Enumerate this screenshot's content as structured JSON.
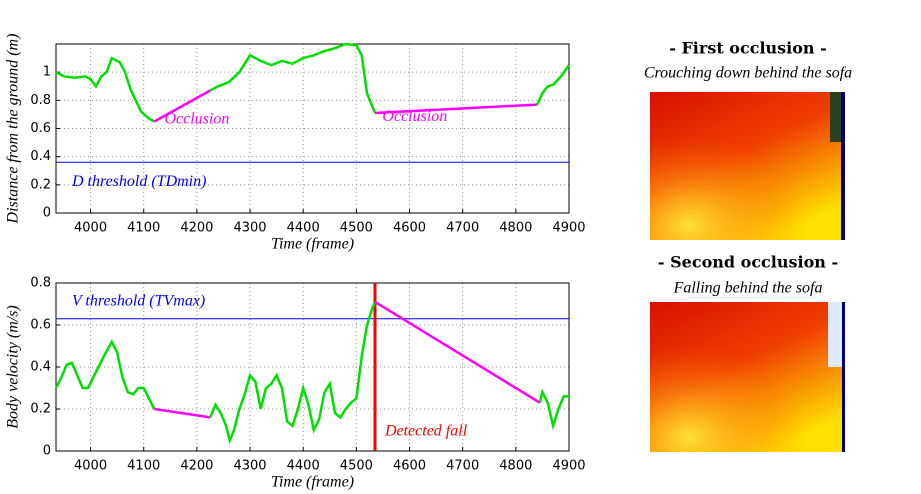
{
  "chart_data": [
    {
      "type": "line",
      "xlabel": "Time (frame)",
      "ylabel": "Distance from the ground (m)",
      "xlim": [
        3935,
        4900
      ],
      "xticks": [
        4000,
        4100,
        4200,
        4300,
        4400,
        4500,
        4600,
        4700,
        4800,
        4900
      ],
      "ylim": [
        0,
        1.2
      ],
      "yticks": [
        0,
        0.2,
        0.4,
        0.6,
        0.8,
        1
      ],
      "grid": true,
      "series": [
        {
          "color": "#00e000",
          "x": [
            3935,
            3950,
            3970,
            3990,
            4000,
            4010,
            4020,
            4030,
            4040,
            4055,
            4065,
            4075,
            4085,
            4095,
            4110,
            4120
          ],
          "values": [
            1.0,
            0.97,
            0.96,
            0.97,
            0.95,
            0.9,
            0.97,
            1.0,
            1.1,
            1.07,
            1.0,
            0.88,
            0.8,
            0.72,
            0.67,
            0.65
          ]
        },
        {
          "color": "#ff00ff",
          "x": [
            4120,
            4225
          ],
          "values": [
            0.65,
            0.87
          ]
        },
        {
          "color": "#00e000",
          "x": [
            4225,
            4240,
            4260,
            4280,
            4300,
            4320,
            4340,
            4360,
            4380,
            4400,
            4420,
            4440,
            4460,
            4480,
            4500,
            4510,
            4520,
            4535
          ],
          "values": [
            0.87,
            0.9,
            0.93,
            1.0,
            1.12,
            1.08,
            1.05,
            1.08,
            1.06,
            1.1,
            1.12,
            1.15,
            1.17,
            1.2,
            1.19,
            1.12,
            0.85,
            0.71
          ]
        },
        {
          "color": "#ff00ff",
          "x": [
            4535,
            4840
          ],
          "values": [
            0.71,
            0.77
          ]
        },
        {
          "color": "#00e000",
          "x": [
            4840,
            4850,
            4860,
            4870,
            4885,
            4900
          ],
          "values": [
            0.77,
            0.85,
            0.9,
            0.91,
            0.97,
            1.05
          ]
        }
      ],
      "hlines": [
        {
          "value": 0.36,
          "color": "#0000ff",
          "label": "D threshold (TDmin)"
        }
      ],
      "annotations": [
        {
          "text": "Occlusion",
          "color": "#ff00ff"
        },
        {
          "text": "Occlusion",
          "color": "#ff00ff"
        }
      ]
    },
    {
      "type": "line",
      "xlabel": "Time (frame)",
      "ylabel": "Body velocity (m/s)",
      "xlim": [
        3935,
        4900
      ],
      "xticks": [
        4000,
        4100,
        4200,
        4300,
        4400,
        4500,
        4600,
        4700,
        4800,
        4900
      ],
      "ylim": [
        0,
        0.8
      ],
      "yticks": [
        0,
        0.2,
        0.4,
        0.6,
        0.8
      ],
      "grid": true,
      "series": [
        {
          "color": "#00e000",
          "x": [
            3935,
            3945,
            3955,
            3965,
            3975,
            3985,
            3995,
            4005,
            4015,
            4025,
            4040,
            4050,
            4060,
            4070,
            4080,
            4090,
            4100,
            4110,
            4120
          ],
          "values": [
            0.3,
            0.35,
            0.41,
            0.42,
            0.36,
            0.3,
            0.3,
            0.35,
            0.4,
            0.45,
            0.52,
            0.47,
            0.35,
            0.28,
            0.27,
            0.3,
            0.3,
            0.25,
            0.2
          ]
        },
        {
          "color": "#ff00ff",
          "x": [
            4120,
            4225
          ],
          "values": [
            0.2,
            0.16
          ]
        },
        {
          "color": "#00e000",
          "x": [
            4225,
            4235,
            4245,
            4255,
            4262,
            4270,
            4280,
            4290,
            4300,
            4310,
            4320,
            4330,
            4340,
            4350,
            4360,
            4370,
            4380,
            4390,
            4400,
            4410,
            4420,
            4430,
            4440,
            4450,
            4460,
            4470,
            4480,
            4490,
            4500,
            4510,
            4520,
            4530,
            4535
          ],
          "values": [
            0.16,
            0.22,
            0.18,
            0.12,
            0.05,
            0.1,
            0.2,
            0.27,
            0.36,
            0.33,
            0.2,
            0.3,
            0.32,
            0.36,
            0.3,
            0.14,
            0.12,
            0.2,
            0.3,
            0.22,
            0.1,
            0.15,
            0.28,
            0.32,
            0.18,
            0.16,
            0.2,
            0.23,
            0.25,
            0.45,
            0.6,
            0.68,
            0.71
          ]
        },
        {
          "color": "#ff00ff",
          "x": [
            4535,
            4845
          ],
          "values": [
            0.71,
            0.23
          ]
        },
        {
          "color": "#00e000",
          "x": [
            4845,
            4850,
            4860,
            4870,
            4880,
            4890,
            4900
          ],
          "values": [
            0.23,
            0.28,
            0.23,
            0.12,
            0.2,
            0.26,
            0.26
          ]
        }
      ],
      "hlines": [
        {
          "value": 0.63,
          "color": "#0000ff",
          "label": "V threshold (TVmax)"
        }
      ],
      "vlines": [
        {
          "value": 4535,
          "color": "#ff0000",
          "label": "Detected fall"
        }
      ]
    }
  ],
  "images": [
    {
      "title": "- First occlusion -",
      "caption": "Crouching down behind the sofa"
    },
    {
      "title": "- Second occlusion -",
      "caption": "Falling behind the sofa"
    }
  ]
}
